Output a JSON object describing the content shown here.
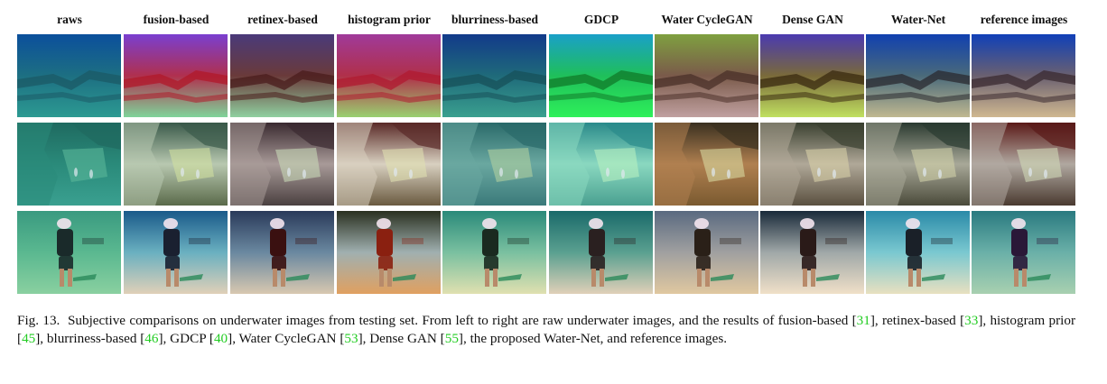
{
  "figure": {
    "columns": [
      {
        "label": "raws"
      },
      {
        "label": "fusion-based"
      },
      {
        "label": "retinex-based"
      },
      {
        "label": "histogram prior"
      },
      {
        "label": "blurriness-based"
      },
      {
        "label": "GDCP"
      },
      {
        "label": "Water CycleGAN"
      },
      {
        "label": "Dense GAN"
      },
      {
        "label": "Water-Net"
      },
      {
        "label": "reference images"
      }
    ],
    "rows": [
      {
        "scene": "underwater rock ledge"
      },
      {
        "scene": "reef slope with sandy patch"
      },
      {
        "scene": "kneeling scuba diver on sand"
      }
    ],
    "tile_colors": [
      [
        {
          "top": "#0b4f9c",
          "mid": "#1d6f82",
          "bottom": "#2c9a92",
          "band": "#1b5a66"
        },
        {
          "top": "#7a3fd0",
          "mid": "#b0304e",
          "bottom": "#7fd49a",
          "band": "#b0182a"
        },
        {
          "top": "#4a3a7a",
          "mid": "#6a3a3a",
          "bottom": "#8fd0a0",
          "band": "#4a1c1c"
        },
        {
          "top": "#a03a9a",
          "mid": "#b0304a",
          "bottom": "#9ad070",
          "band": "#b01a30"
        },
        {
          "top": "#123a8a",
          "mid": "#1f6a7a",
          "bottom": "#3aa08f",
          "band": "#17505a"
        },
        {
          "top": "#1aa0c8",
          "mid": "#1fbf5a",
          "bottom": "#2ef05a",
          "band": "#107a2a"
        },
        {
          "top": "#7fa040",
          "mid": "#7a5a4a",
          "bottom": "#c0a0a0",
          "band": "#4a3028"
        },
        {
          "top": "#4a3ab0",
          "mid": "#7a6a3a",
          "bottom": "#c0e060",
          "band": "#3a2a10"
        },
        {
          "top": "#1040b0",
          "mid": "#4a6a7a",
          "bottom": "#c0b890",
          "band": "#2a2a30"
        },
        {
          "top": "#1040b8",
          "mid": "#6a6070",
          "bottom": "#d0b890",
          "band": "#3a2a30"
        }
      ],
      [
        {
          "top": "#1f6a60",
          "mid": "#2a8a7a",
          "bottom": "#3aa090",
          "band": "#5ab89a"
        },
        {
          "top": "#3a5a4a",
          "mid": "#b8c8b0",
          "bottom": "#5a6a4a",
          "band": "#d0e0a0"
        },
        {
          "top": "#3a2a30",
          "mid": "#a89a98",
          "bottom": "#4a4040",
          "band": "#c8d8b8"
        },
        {
          "top": "#5a2a28",
          "mid": "#d8d0c0",
          "bottom": "#6a5a40",
          "band": "#e0e0b0"
        },
        {
          "top": "#2a6a6a",
          "mid": "#6aa8a0",
          "bottom": "#3a7a7a",
          "band": "#b0d0a0"
        },
        {
          "top": "#2a8a8a",
          "mid": "#8ad8c0",
          "bottom": "#4aa090",
          "band": "#b8f0c0"
        },
        {
          "top": "#3a3020",
          "mid": "#b08050",
          "bottom": "#7a5a30",
          "band": "#d8d8a0"
        },
        {
          "top": "#3a4030",
          "mid": "#b0a898",
          "bottom": "#5a5040",
          "band": "#d8d0a8"
        },
        {
          "top": "#2a3a30",
          "mid": "#a8a898",
          "bottom": "#4a4a3a",
          "band": "#d0d0a8"
        },
        {
          "top": "#5a1a18",
          "mid": "#b0a8a0",
          "bottom": "#4a3a30",
          "band": "#d0d8b8"
        }
      ],
      [
        {
          "top": "#3a9a80",
          "mid": "#5ab890",
          "bottom": "#8ad0a0",
          "band": "#1a2a2a"
        },
        {
          "top": "#1a5a8a",
          "mid": "#6ab0c0",
          "bottom": "#e0d0b8",
          "band": "#1a2030"
        },
        {
          "top": "#2a3a5a",
          "mid": "#6a88a0",
          "bottom": "#d8c8b0",
          "band": "#3a1010"
        },
        {
          "top": "#2a3020",
          "mid": "#a0b0b0",
          "bottom": "#e0a060",
          "band": "#8a2010"
        },
        {
          "top": "#2a8a7a",
          "mid": "#7ac0a0",
          "bottom": "#e0e0b0",
          "band": "#1a2a20"
        },
        {
          "top": "#1a6a6a",
          "mid": "#5aa090",
          "bottom": "#e0d0b8",
          "band": "#2a2020"
        },
        {
          "top": "#5a6a80",
          "mid": "#a0a0a0",
          "bottom": "#e0c8a0",
          "band": "#2a2018"
        },
        {
          "top": "#1a2a3a",
          "mid": "#a0a8a8",
          "bottom": "#f0e0c8",
          "band": "#2a1a18"
        },
        {
          "top": "#2a8aa8",
          "mid": "#7ac8d0",
          "bottom": "#e8e0c0",
          "band": "#1a2028"
        },
        {
          "top": "#2a7a80",
          "mid": "#6ab0a8",
          "bottom": "#a8d0b0",
          "band": "#2a1838"
        }
      ]
    ],
    "caption": {
      "prefix": "Fig. 13.",
      "parts": [
        {
          "text": "Subjective comparisons on underwater images from testing set. From left to right are raw underwater images, and the results of fusion-based [",
          "ref": false
        },
        {
          "text": "31",
          "ref": true
        },
        {
          "text": "], retinex-based [",
          "ref": false
        },
        {
          "text": "33",
          "ref": true
        },
        {
          "text": "], histogram prior [",
          "ref": false
        },
        {
          "text": "45",
          "ref": true
        },
        {
          "text": "], blurriness-based [",
          "ref": false
        },
        {
          "text": "46",
          "ref": true
        },
        {
          "text": "], GDCP [",
          "ref": false
        },
        {
          "text": "40",
          "ref": true
        },
        {
          "text": "], Water CycleGAN [",
          "ref": false
        },
        {
          "text": "53",
          "ref": true
        },
        {
          "text": "], Dense GAN [",
          "ref": false
        },
        {
          "text": "55",
          "ref": true
        },
        {
          "text": "], the proposed Water-Net, and reference images.",
          "ref": false
        }
      ]
    },
    "ref_color": "#22cc22"
  }
}
